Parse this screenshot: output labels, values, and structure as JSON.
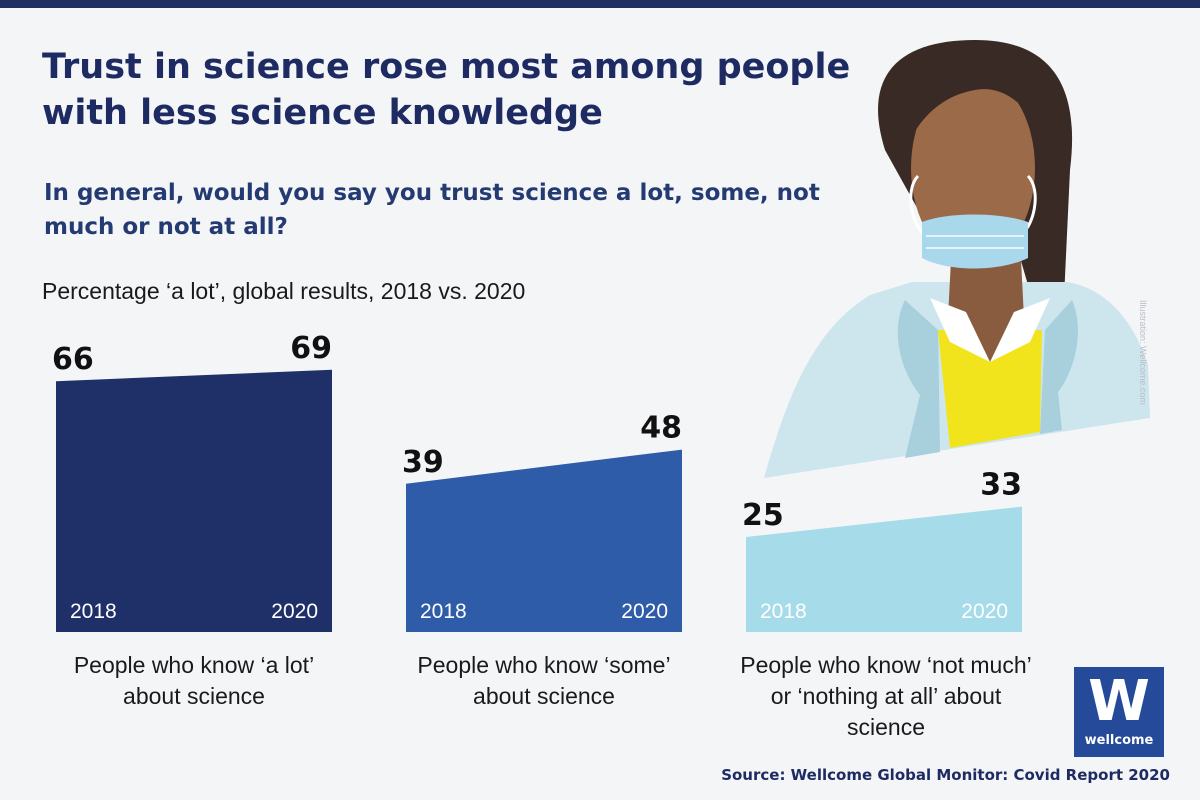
{
  "header": {
    "title": "Trust in science rose most among people with less science knowledge",
    "question": "In general, would you say you trust science a lot, some, not much or not at all?"
  },
  "chart_data": {
    "type": "area",
    "title": "Trust in science rose most among people with less science knowledge",
    "subtitle": "Percentage ‘a lot’, global results, 2018 vs. 2020",
    "x": [
      "2018",
      "2020"
    ],
    "series": [
      {
        "name": "People who know ‘a lot’ about science",
        "values": [
          66,
          69
        ],
        "color": "#1f3068",
        "year_label_color": "#ffffff"
      },
      {
        "name": "People who know ‘some’ about science",
        "values": [
          39,
          48
        ],
        "color": "#2f5ca9",
        "year_label_color": "#ffffff"
      },
      {
        "name": "People who know ‘not much’ or ‘nothing at all’ about science",
        "values": [
          25,
          33
        ],
        "color": "#a6dbea",
        "year_label_color": "#ffffff"
      }
    ],
    "ylim": [
      0,
      69
    ]
  },
  "category_labels": [
    "People who know ‘a lot’ about science",
    "People who know ‘some’ about science",
    "People who know ‘not much’ or ‘nothing at all’ about science"
  ],
  "illustration": {
    "credit": "Illustration: Wellcome.com"
  },
  "logo": {
    "letter": "W",
    "word": "wellcome"
  },
  "footer": {
    "source": "Source: Wellcome Global Monitor: Covid Report 2020"
  },
  "colors": {
    "navy": "#1e2b63",
    "skin": "#9a6a49",
    "hair": "#3a2a25",
    "mask": "#a9d7ec",
    "coat": "#cde6ee",
    "coat_shadow": "#a7cfdc",
    "shirt": "#f2e41c",
    "logo_bg": "#254a99"
  }
}
